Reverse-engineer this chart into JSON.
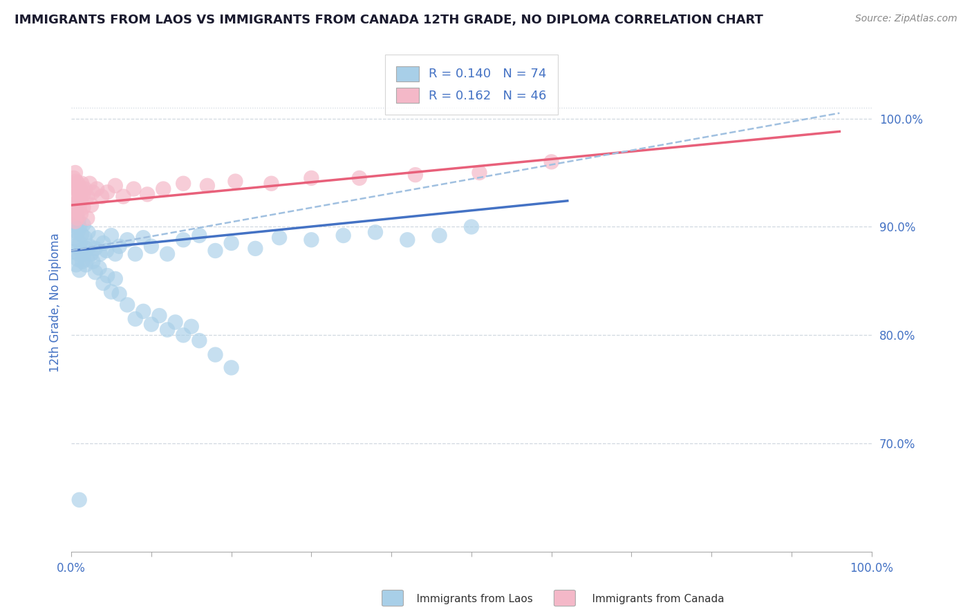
{
  "title": "IMMIGRANTS FROM LAOS VS IMMIGRANTS FROM CANADA 12TH GRADE, NO DIPLOMA CORRELATION CHART",
  "source": "Source: ZipAtlas.com",
  "ylabel": "12th Grade, No Diploma",
  "blue_r": "0.140",
  "blue_n": "74",
  "pink_r": "0.162",
  "pink_n": "46",
  "blue_color": "#a8cfe8",
  "pink_color": "#f4b8c8",
  "blue_line_color": "#4472c4",
  "pink_line_color": "#e8607a",
  "dashed_line_color": "#a0c0e0",
  "grid_color": "#d0d8e0",
  "title_color": "#1a1a2e",
  "source_color": "#888888",
  "axis_label_color": "#4472c4",
  "legend_text_color": "#333333",
  "xlim": [
    0.0,
    1.0
  ],
  "ylim": [
    0.6,
    1.06
  ],
  "ytick_values": [
    0.7,
    0.8,
    0.9,
    1.0
  ],
  "ytick_labels": [
    "70.0%",
    "80.0%",
    "90.0%",
    "100.0%"
  ],
  "xtick_values": [
    0.0,
    0.1,
    0.2,
    0.3,
    0.4,
    0.5,
    0.6,
    0.7,
    0.8,
    0.9,
    1.0
  ],
  "blue_scatter_x": [
    0.002,
    0.003,
    0.004,
    0.005,
    0.005,
    0.006,
    0.006,
    0.007,
    0.007,
    0.008,
    0.008,
    0.009,
    0.009,
    0.01,
    0.01,
    0.011,
    0.012,
    0.013,
    0.014,
    0.015,
    0.016,
    0.017,
    0.018,
    0.019,
    0.02,
    0.021,
    0.023,
    0.025,
    0.027,
    0.03,
    0.033,
    0.036,
    0.04,
    0.044,
    0.05,
    0.055,
    0.06,
    0.07,
    0.08,
    0.09,
    0.1,
    0.12,
    0.14,
    0.16,
    0.18,
    0.2,
    0.23,
    0.26,
    0.3,
    0.34,
    0.38,
    0.42,
    0.46,
    0.5,
    0.03,
    0.035,
    0.04,
    0.045,
    0.05,
    0.055,
    0.06,
    0.07,
    0.08,
    0.09,
    0.1,
    0.11,
    0.12,
    0.13,
    0.14,
    0.15,
    0.16,
    0.18,
    0.2,
    0.01
  ],
  "blue_scatter_y": [
    0.877,
    0.91,
    0.895,
    0.918,
    0.882,
    0.9,
    0.865,
    0.912,
    0.888,
    0.895,
    0.87,
    0.905,
    0.875,
    0.9,
    0.86,
    0.885,
    0.878,
    0.893,
    0.868,
    0.902,
    0.875,
    0.89,
    0.865,
    0.88,
    0.87,
    0.895,
    0.882,
    0.875,
    0.868,
    0.88,
    0.89,
    0.875,
    0.885,
    0.878,
    0.892,
    0.875,
    0.882,
    0.888,
    0.875,
    0.89,
    0.882,
    0.875,
    0.888,
    0.892,
    0.878,
    0.885,
    0.88,
    0.89,
    0.888,
    0.892,
    0.895,
    0.888,
    0.892,
    0.9,
    0.858,
    0.862,
    0.848,
    0.855,
    0.84,
    0.852,
    0.838,
    0.828,
    0.815,
    0.822,
    0.81,
    0.818,
    0.805,
    0.812,
    0.8,
    0.808,
    0.795,
    0.782,
    0.77,
    0.648
  ],
  "pink_scatter_x": [
    0.002,
    0.003,
    0.004,
    0.005,
    0.005,
    0.006,
    0.006,
    0.007,
    0.008,
    0.009,
    0.01,
    0.011,
    0.012,
    0.013,
    0.015,
    0.017,
    0.02,
    0.023,
    0.027,
    0.032,
    0.038,
    0.045,
    0.055,
    0.065,
    0.078,
    0.095,
    0.115,
    0.14,
    0.17,
    0.205,
    0.25,
    0.3,
    0.36,
    0.43,
    0.51,
    0.6,
    0.003,
    0.004,
    0.005,
    0.007,
    0.008,
    0.01,
    0.012,
    0.015,
    0.02,
    0.025
  ],
  "pink_scatter_y": [
    0.938,
    0.945,
    0.928,
    0.95,
    0.918,
    0.942,
    0.922,
    0.935,
    0.94,
    0.932,
    0.928,
    0.935,
    0.925,
    0.94,
    0.93,
    0.935,
    0.928,
    0.94,
    0.932,
    0.935,
    0.928,
    0.932,
    0.938,
    0.928,
    0.935,
    0.93,
    0.935,
    0.94,
    0.938,
    0.942,
    0.94,
    0.945,
    0.945,
    0.948,
    0.95,
    0.96,
    0.912,
    0.92,
    0.905,
    0.915,
    0.908,
    0.918,
    0.912,
    0.918,
    0.908,
    0.92
  ],
  "blue_line_x": [
    0.0,
    0.62
  ],
  "blue_line_y": [
    0.878,
    0.924
  ],
  "pink_line_x": [
    0.0,
    0.96
  ],
  "pink_line_y": [
    0.92,
    0.988
  ],
  "dash_line_x": [
    0.0,
    0.96
  ],
  "dash_line_y": [
    0.878,
    1.005
  ]
}
